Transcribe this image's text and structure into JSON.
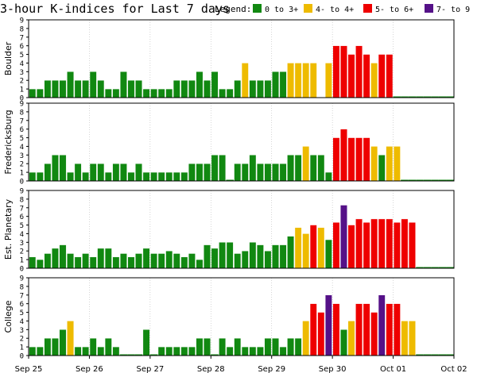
{
  "title": "3-hour K-indices for Last 7 days",
  "legend": {
    "label": "Legend:",
    "items": [
      {
        "label": "0 to 3+",
        "color": "#118811"
      },
      {
        "label": "4- to 4+",
        "color": "#eebb00"
      },
      {
        "label": "5- to 6+",
        "color": "#ee0000"
      },
      {
        "label": "7- to 9",
        "color": "#551188"
      }
    ]
  },
  "colors": {
    "green": "#118811",
    "yellow": "#eebb00",
    "red": "#ee0000",
    "purple": "#551188"
  },
  "chart_data": {
    "type": "bar",
    "ylim": [
      0,
      9
    ],
    "yticks": [
      "0",
      "1",
      "2",
      "3",
      "4",
      "5",
      "6",
      "7",
      "8",
      "9"
    ],
    "x_tick_labels": [
      "Sep 25",
      "Sep 26",
      "Sep 27",
      "Sep 28",
      "Sep 29",
      "Sep 30",
      "Oct 01",
      "Oct 02"
    ],
    "bars_per_day": 8,
    "series": [
      {
        "name": "Boulder",
        "values": [
          1,
          1,
          2,
          2,
          2,
          3,
          2,
          2,
          3,
          2,
          1,
          1,
          3,
          2,
          2,
          1,
          1,
          1,
          1,
          2,
          2,
          2,
          3,
          2,
          3,
          1,
          1,
          2,
          4,
          2,
          2,
          2,
          3,
          3,
          4,
          4,
          4,
          4,
          null,
          4,
          6,
          6,
          5,
          6,
          5,
          4,
          5,
          5,
          0,
          0,
          0,
          0,
          0,
          0,
          0,
          0
        ]
      },
      {
        "name": "Fredericksburg",
        "values": [
          1,
          1,
          2,
          3,
          3,
          1,
          2,
          1,
          2,
          2,
          1,
          2,
          2,
          1,
          2,
          1,
          1,
          1,
          1,
          1,
          1,
          2,
          2,
          2,
          3,
          3,
          0,
          2,
          2,
          3,
          2,
          2,
          2,
          2,
          3,
          3,
          4,
          3,
          3,
          1,
          5,
          6,
          5,
          5,
          5,
          4,
          3,
          4,
          4,
          0,
          0,
          0,
          0,
          0,
          0,
          0
        ]
      },
      {
        "name": "Est. Planetary",
        "values": [
          1.3,
          1,
          1.7,
          2.3,
          2.7,
          1.7,
          1.3,
          1.7,
          1.3,
          2.3,
          2.3,
          1.3,
          1.7,
          1.3,
          1.7,
          2.3,
          1.7,
          1.7,
          2,
          1.7,
          1.3,
          1.7,
          1,
          2.7,
          2.3,
          3,
          3,
          1.7,
          2,
          3,
          2.7,
          2,
          2.7,
          2.7,
          3.7,
          4.7,
          4,
          5,
          4.7,
          3.3,
          5.3,
          7.3,
          5,
          5.7,
          5.3,
          5.7,
          5.7,
          5.7,
          5.3,
          5.7,
          5.3,
          0,
          0,
          0,
          0,
          0
        ]
      },
      {
        "name": "College",
        "values": [
          1,
          1,
          2,
          2,
          3,
          4,
          1,
          1,
          2,
          1,
          2,
          1,
          0,
          0,
          0,
          3,
          0,
          1,
          1,
          1,
          1,
          1,
          2,
          2,
          0,
          2,
          1,
          2,
          1,
          1,
          1,
          2,
          2,
          1,
          2,
          2,
          4,
          6,
          5,
          7,
          6,
          3,
          4,
          6,
          6,
          5,
          7,
          6,
          6,
          4,
          4,
          0,
          0,
          0,
          0,
          0
        ]
      }
    ]
  }
}
